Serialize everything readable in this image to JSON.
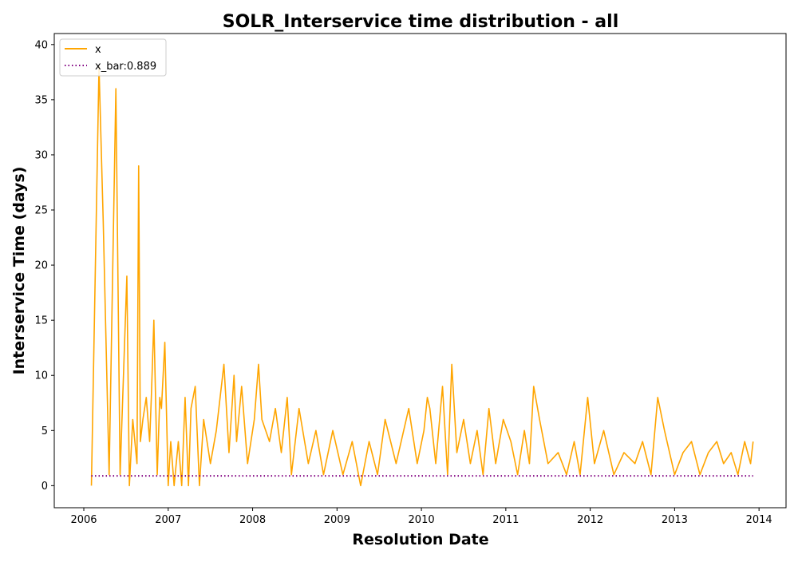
{
  "chart_data": {
    "type": "line",
    "title": "SOLR_Interservice time distribution - all",
    "xlabel": "Resolution Date",
    "ylabel": "Interservice Time (days)",
    "xlim": [
      2005.65,
      2014.32
    ],
    "ylim": [
      -2,
      41
    ],
    "x_ticks": [
      2006,
      2007,
      2008,
      2009,
      2010,
      2011,
      2012,
      2013,
      2014
    ],
    "x_tick_labels": [
      "2006",
      "2007",
      "2008",
      "2009",
      "2010",
      "2011",
      "2012",
      "2013",
      "2014"
    ],
    "y_ticks": [
      0,
      5,
      10,
      15,
      20,
      25,
      30,
      35,
      40
    ],
    "y_tick_labels": [
      "0",
      "5",
      "10",
      "15",
      "20",
      "25",
      "30",
      "35",
      "40"
    ],
    "grid": false,
    "legend_position": "upper-left",
    "legend": [
      {
        "label": "x",
        "style": "solid",
        "color": "#ffa500"
      },
      {
        "label": "x_bar:0.889",
        "style": "dotted",
        "color": "#800080"
      }
    ],
    "series": [
      {
        "name": "x",
        "style": "solid",
        "color": "#ffa500",
        "x": [
          2006.09,
          2006.18,
          2006.23,
          2006.3,
          2006.38,
          2006.43,
          2006.51,
          2006.54,
          2006.58,
          2006.63,
          2006.65,
          2006.67,
          2006.7,
          2006.74,
          2006.78,
          2006.8,
          2006.83,
          2006.87,
          2006.9,
          2006.92,
          2006.96,
          2007.0,
          2007.03,
          2007.07,
          2007.12,
          2007.16,
          2007.2,
          2007.24,
          2007.27,
          2007.32,
          2007.37,
          2007.42,
          2007.5,
          2007.57,
          2007.66,
          2007.72,
          2007.78,
          2007.81,
          2007.87,
          2007.94,
          2008.02,
          2008.07,
          2008.11,
          2008.2,
          2008.27,
          2008.34,
          2008.41,
          2008.46,
          2008.55,
          2008.66,
          2008.75,
          2008.84,
          2008.95,
          2009.07,
          2009.18,
          2009.28,
          2009.38,
          2009.48,
          2009.57,
          2009.7,
          2009.85,
          2009.95,
          2010.03,
          2010.07,
          2010.1,
          2010.17,
          2010.25,
          2010.31,
          2010.36,
          2010.42,
          2010.5,
          2010.58,
          2010.66,
          2010.73,
          2010.8,
          2010.88,
          2010.97,
          2011.06,
          2011.14,
          2011.22,
          2011.28,
          2011.33,
          2011.4,
          2011.5,
          2011.62,
          2011.72,
          2011.81,
          2011.88,
          2011.97,
          2012.05,
          2012.16,
          2012.28,
          2012.4,
          2012.53,
          2012.62,
          2012.72,
          2012.8,
          2012.88,
          2013.0,
          2013.1,
          2013.2,
          2013.3,
          2013.4,
          2013.5,
          2013.58,
          2013.67,
          2013.75,
          2013.83,
          2013.9,
          2013.93
        ],
        "y": [
          0,
          38,
          24,
          1,
          36,
          1,
          19,
          0,
          6,
          2,
          29,
          4,
          6,
          8,
          4,
          8,
          15,
          1,
          8,
          7,
          13,
          0,
          4,
          0,
          4,
          0,
          8,
          0,
          7,
          9,
          0,
          6,
          2,
          5,
          11,
          3,
          10,
          4,
          9,
          2,
          6,
          11,
          6,
          4,
          7,
          3,
          8,
          1,
          7,
          2,
          5,
          1,
          5,
          1,
          4,
          0,
          4,
          1,
          6,
          2,
          7,
          2,
          5,
          8,
          7,
          2,
          9,
          1,
          11,
          3,
          6,
          2,
          5,
          1,
          7,
          2,
          6,
          4,
          1,
          5,
          2,
          9,
          6,
          2,
          3,
          1,
          4,
          1,
          8,
          2,
          5,
          1,
          3,
          2,
          4,
          1,
          8,
          5,
          1,
          3,
          4,
          1,
          3,
          4,
          2,
          3,
          1,
          4,
          2,
          4
        ]
      },
      {
        "name": "x_bar:0.889",
        "style": "dotted",
        "color": "#800080",
        "x": [
          2006.09,
          2013.93
        ],
        "y": [
          0.889,
          0.889
        ]
      }
    ]
  }
}
